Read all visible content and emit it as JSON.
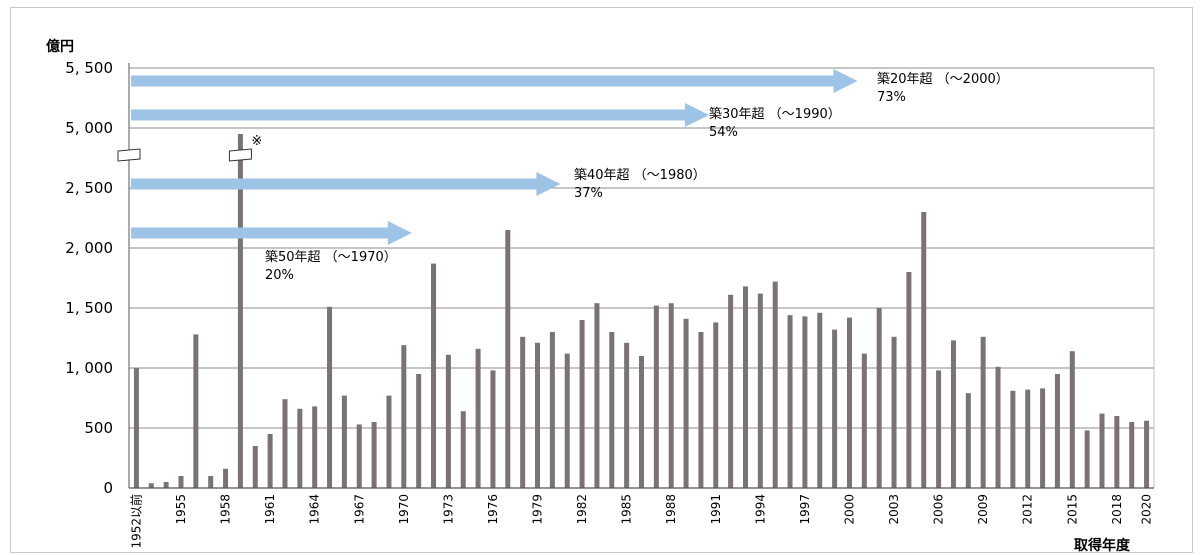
{
  "chart_data": {
    "type": "bar",
    "ylabel": "億円",
    "xlabel": "取得年度",
    "y_ticks": [
      "0",
      "500",
      "1, 000",
      "1, 500",
      "2, 000",
      "2, 500",
      "5, 000",
      "5, 500"
    ],
    "y_axis_break": true,
    "grid": true,
    "bar_color": "#7a7273",
    "arrow_color": "#9dc3e6",
    "x_tick_labels": [
      "1952以前",
      "1955",
      "1958",
      "1961",
      "1964",
      "1967",
      "1970",
      "1973",
      "1976",
      "1979",
      "1982",
      "1985",
      "1988",
      "1991",
      "1994",
      "1997",
      "2000",
      "2003",
      "2006",
      "2009",
      "2012",
      "2015",
      "2018",
      "2020"
    ],
    "categories": [
      "1952以前",
      "1953",
      "1954",
      "1955",
      "1956",
      "1957",
      "1958",
      "1959",
      "1960",
      "1961",
      "1962",
      "1963",
      "1964",
      "1965",
      "1966",
      "1967",
      "1968",
      "1969",
      "1970",
      "1971",
      "1972",
      "1973",
      "1974",
      "1975",
      "1976",
      "1977",
      "1978",
      "1979",
      "1980",
      "1981",
      "1982",
      "1983",
      "1984",
      "1985",
      "1986",
      "1987",
      "1988",
      "1989",
      "1990",
      "1991",
      "1992",
      "1993",
      "1994",
      "1995",
      "1996",
      "1997",
      "1998",
      "1999",
      "2000",
      "2001",
      "2002",
      "2003",
      "2004",
      "2005",
      "2006",
      "2007",
      "2008",
      "2009",
      "2010",
      "2011",
      "2012",
      "2013",
      "2014",
      "2015",
      "2016",
      "2017",
      "2018",
      "2019",
      "2020"
    ],
    "values": [
      1000,
      40,
      50,
      100,
      1280,
      100,
      160,
      4950,
      350,
      450,
      740,
      660,
      680,
      1510,
      770,
      530,
      550,
      770,
      1190,
      950,
      1870,
      1110,
      640,
      1160,
      980,
      2150,
      1260,
      1210,
      1300,
      1120,
      1400,
      1540,
      1300,
      1210,
      1100,
      1520,
      1540,
      1410,
      1300,
      1380,
      1610,
      1680,
      1620,
      1720,
      1440,
      1430,
      1460,
      1320,
      1420,
      1120,
      1500,
      1260,
      1800,
      2300,
      980,
      1230,
      790,
      1260,
      1010,
      810,
      820,
      830,
      950,
      1140,
      480,
      620,
      600,
      550,
      560
    ],
    "annotations": [
      {
        "label": "築20年超 （～2000）",
        "value": "73%",
        "until": "2000"
      },
      {
        "label": "築30年超 （～1990）",
        "value": "54%",
        "until": "1990"
      },
      {
        "label": "築40年超 （～1980）",
        "value": "37%",
        "until": "1980"
      },
      {
        "label": "築50年超 （～1970）",
        "value": "20%",
        "until": "1970"
      }
    ],
    "note_mark": "※"
  }
}
